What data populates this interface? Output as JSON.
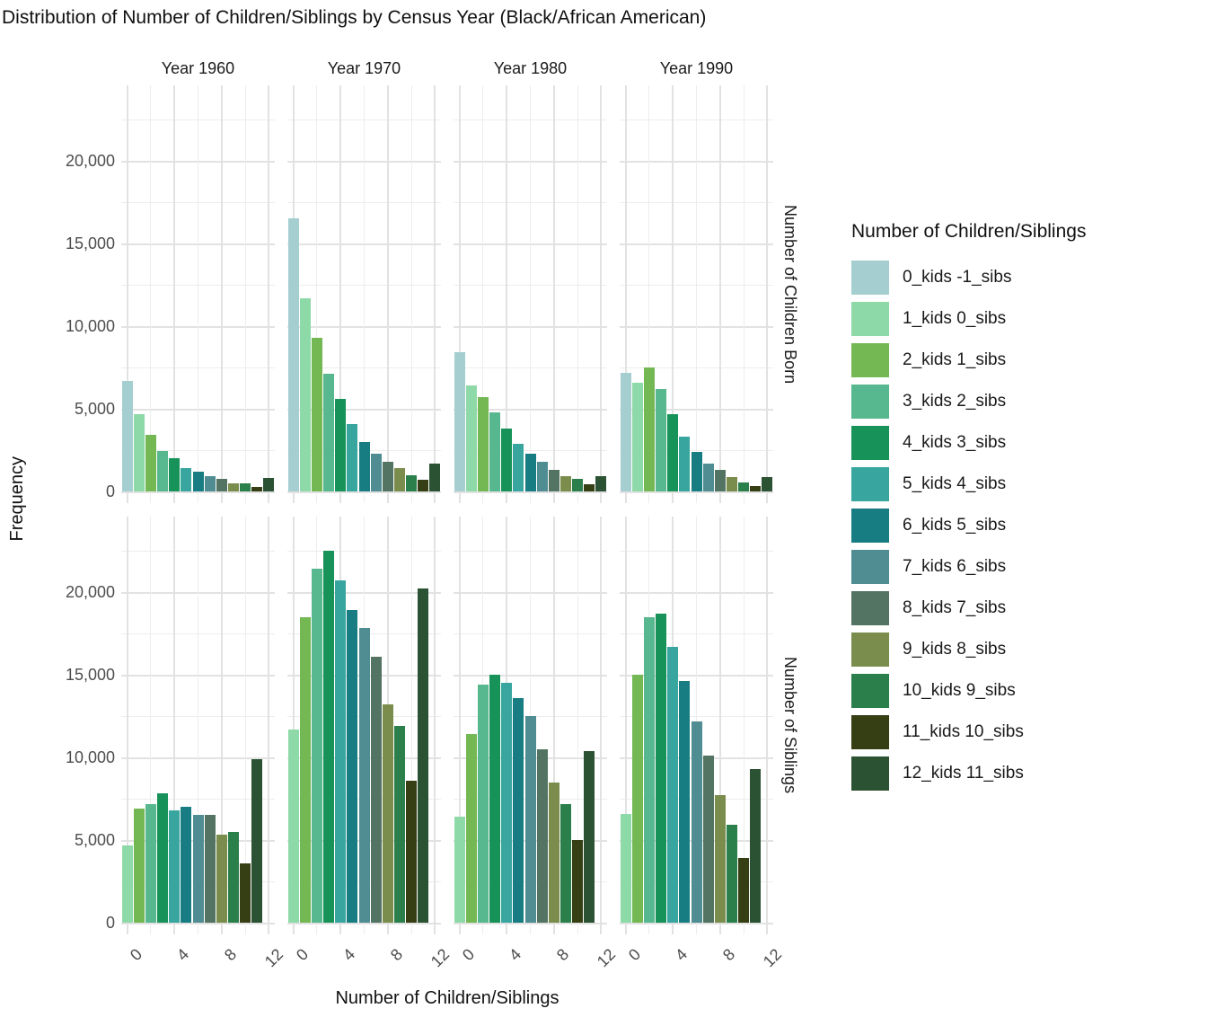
{
  "title": "Distribution of Number of Children/Siblings by Census Year (Black/African American)",
  "axes": {
    "x_title": "Number of Children/Siblings",
    "y_title": "Frequency",
    "x_tick_labels": [
      "0",
      "4",
      "8",
      "12"
    ],
    "x_tick_positions": [
      0,
      4,
      8,
      12
    ],
    "y_tick_labels": [
      "0",
      "5,000",
      "10,000",
      "15,000",
      "20,000"
    ],
    "y_tick_values": [
      0,
      5000,
      10000,
      15000,
      20000
    ]
  },
  "facets": {
    "columns": [
      "Year 1960",
      "Year 1970",
      "Year 1980",
      "Year 1990"
    ],
    "rows": [
      "Number of Children Born",
      "Number of Siblings"
    ]
  },
  "legend": {
    "title": "Number of Children/Siblings",
    "items": [
      {
        "label": "0_kids -1_sibs",
        "color": "#a4ced0"
      },
      {
        "label": "1_kids 0_sibs",
        "color": "#8ed9a8"
      },
      {
        "label": "2_kids 1_sibs",
        "color": "#74b854"
      },
      {
        "label": "3_kids 2_sibs",
        "color": "#57b78e"
      },
      {
        "label": "4_kids 3_sibs",
        "color": "#17935a"
      },
      {
        "label": "5_kids 4_sibs",
        "color": "#38a69f"
      },
      {
        "label": "6_kids 5_sibs",
        "color": "#187d82"
      },
      {
        "label": "7_kids 6_sibs",
        "color": "#4f8d92"
      },
      {
        "label": "8_kids 7_sibs",
        "color": "#537463"
      },
      {
        "label": "9_kids 8_sibs",
        "color": "#7b8d4d"
      },
      {
        "label": "10_kids 9_sibs",
        "color": "#2a7f4b"
      },
      {
        "label": "11_kids 10_sibs",
        "color": "#363f14"
      },
      {
        "label": "12_kids 11_sibs",
        "color": "#2b5232"
      }
    ]
  },
  "chart_data": {
    "type": "bar",
    "grid": "on",
    "legend_position": "right",
    "ylim": [
      0,
      24500
    ],
    "y_major_step": 5000,
    "y_minor_step": 2500,
    "x_slots": 13,
    "panels": [
      {
        "row": "Number of Children Born",
        "col": "Year 1960",
        "color_offset": 0,
        "values": [
          6700,
          4700,
          3400,
          2450,
          2000,
          1400,
          1200,
          900,
          750,
          500,
          500,
          250,
          800
        ]
      },
      {
        "row": "Number of Children Born",
        "col": "Year 1970",
        "color_offset": 0,
        "values": [
          16500,
          11700,
          9300,
          7100,
          5600,
          4100,
          3000,
          2300,
          1800,
          1400,
          1000,
          700,
          1700
        ]
      },
      {
        "row": "Number of Children Born",
        "col": "Year 1980",
        "color_offset": 0,
        "values": [
          8400,
          6400,
          5700,
          4800,
          3800,
          2900,
          2300,
          1800,
          1300,
          950,
          750,
          450,
          950
        ]
      },
      {
        "row": "Number of Children Born",
        "col": "Year 1990",
        "color_offset": 0,
        "values": [
          7200,
          6600,
          7500,
          6200,
          4700,
          3300,
          2400,
          1700,
          1300,
          850,
          550,
          350,
          850
        ]
      },
      {
        "row": "Number of Siblings",
        "col": "Year 1960",
        "color_offset": 1,
        "values": [
          4700,
          6900,
          7200,
          7800,
          6800,
          7000,
          6500,
          6500,
          5300,
          5500,
          3600,
          9900
        ]
      },
      {
        "row": "Number of Siblings",
        "col": "Year 1970",
        "color_offset": 1,
        "values": [
          11700,
          18500,
          21400,
          22500,
          20700,
          18900,
          17800,
          16100,
          13200,
          11900,
          8600,
          20200
        ]
      },
      {
        "row": "Number of Siblings",
        "col": "Year 1980",
        "color_offset": 1,
        "values": [
          6400,
          11400,
          14400,
          15000,
          14500,
          13600,
          12500,
          10500,
          8500,
          7200,
          5000,
          10400
        ]
      },
      {
        "row": "Number of Siblings",
        "col": "Year 1990",
        "color_offset": 1,
        "values": [
          6600,
          15000,
          18500,
          18700,
          16700,
          14600,
          12200,
          10100,
          7700,
          5900,
          3900,
          9300
        ]
      }
    ]
  }
}
